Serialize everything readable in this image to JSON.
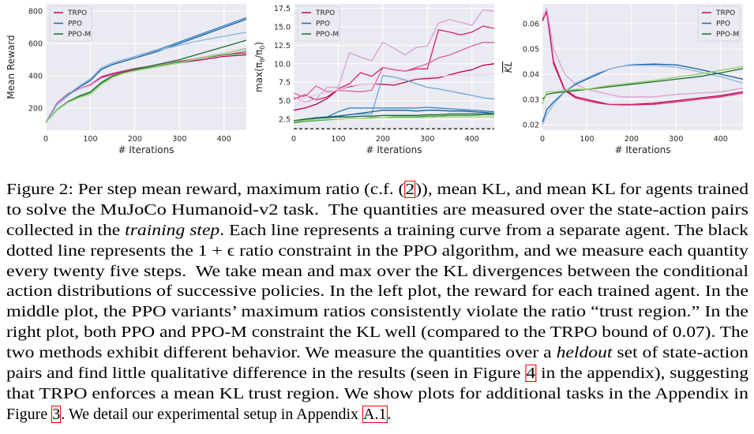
{
  "chart_data": [
    {
      "type": "line",
      "xlabel": "# Iterations",
      "ylabel": "Mean Reward",
      "xlim": [
        0,
        450
      ],
      "ylim": [
        63,
        845
      ],
      "xticks": [
        0,
        100,
        200,
        300,
        400
      ],
      "yticks": [
        200,
        400,
        600,
        800
      ],
      "grid": true,
      "legend": "top-left",
      "x": [
        0,
        25,
        50,
        75,
        100,
        125,
        150,
        175,
        200,
        250,
        300,
        350,
        400,
        450
      ],
      "series": [
        {
          "name": "TRPO",
          "color": "#c8145a",
          "run_colors": [
            "#c2004f",
            "#d6337a",
            "#d9a0d6"
          ],
          "runs": [
            [
              110,
              230,
              290,
              320,
              340,
              390,
              410,
              425,
              440,
              460,
              480,
              500,
              520,
              530
            ],
            [
              110,
              230,
              290,
              320,
              345,
              395,
              415,
              430,
              445,
              465,
              490,
              510,
              530,
              550
            ],
            [
              110,
              225,
              285,
              318,
              340,
              385,
              405,
              420,
              440,
              465,
              485,
              515,
              540,
              570
            ]
          ]
        },
        {
          "name": "PPO",
          "color": "#1f6fb0",
          "run_colors": [
            "#135ea0",
            "#2d7fc0",
            "#8ab4dc"
          ],
          "runs": [
            [
              110,
              220,
              280,
              330,
              370,
              440,
              470,
              490,
              510,
              550,
              600,
              650,
              700,
              750
            ],
            [
              110,
              220,
              285,
              335,
              380,
              450,
              480,
              500,
              520,
              560,
              610,
              660,
              710,
              760
            ],
            [
              110,
              220,
              285,
              335,
              380,
              450,
              480,
              500,
              520,
              555,
              590,
              620,
              645,
              670
            ]
          ]
        },
        {
          "name": "PPO-M",
          "color": "#237a3a",
          "run_colors": [
            "#1b6b2f",
            "#3a9a4a",
            "#a8d878"
          ],
          "runs": [
            [
              110,
              190,
              240,
              275,
              300,
              360,
              400,
              420,
              440,
              470,
              500,
              540,
              580,
              620
            ],
            [
              110,
              190,
              235,
              270,
              295,
              355,
              395,
              418,
              435,
              460,
              485,
              510,
              530,
              540
            ],
            [
              110,
              185,
              235,
              265,
              285,
              345,
              390,
              415,
              430,
              455,
              480,
              510,
              540,
              565
            ]
          ]
        }
      ]
    },
    {
      "type": "line",
      "xlabel": "# Iterations",
      "ylabel": "max(πθ/π0)",
      "xlim": [
        0,
        450
      ],
      "ylim": [
        1.0,
        18.1
      ],
      "xticks": [
        0,
        100,
        200,
        300,
        400
      ],
      "yticks": [
        2.5,
        5.0,
        7.5,
        10.0,
        12.5,
        15.0,
        17.5
      ],
      "grid": true,
      "legend": "top-left",
      "constraint_line": 1.2,
      "x": [
        0,
        25,
        50,
        75,
        100,
        125,
        150,
        175,
        200,
        225,
        250,
        275,
        300,
        325,
        350,
        375,
        400,
        425,
        450
      ],
      "series": [
        {
          "name": "TRPO",
          "color": "#c8145a",
          "run_colors": [
            "#b8004a",
            "#d8206a",
            "#e060a0",
            "#d9a0d6",
            "#ecd0ec"
          ],
          "runs": [
            [
              3.7,
              4.0,
              4.5,
              5.3,
              6.5,
              6.9,
              7.2,
              7.3,
              7.2,
              7.1,
              7.5,
              7.9,
              8.0,
              8.1,
              8.5,
              8.9,
              9.2,
              9.8,
              10.0
            ],
            [
              5.2,
              5.8,
              5.1,
              5.5,
              6.6,
              7.3,
              8.8,
              8.3,
              9.5,
              9.2,
              9.0,
              9.3,
              9.3,
              14.6,
              14.3,
              13.9,
              14.3,
              15.1,
              14.8
            ],
            [
              6.0,
              5.5,
              7.0,
              6.2,
              6.4,
              6.3,
              6.2,
              6.4,
              9.5,
              9.2,
              9.0,
              9.5,
              10.0,
              10.8,
              11.2,
              11.8,
              12.4,
              12.9,
              12.9
            ],
            [
              5.5,
              4.8,
              5.2,
              6.8,
              6.8,
              11.5,
              10.9,
              10.4,
              12.9,
              12.1,
              11.2,
              12.2,
              12.4,
              15.5,
              16.0,
              15.6,
              15.2,
              17.3,
              17.1
            ],
            [
              4.0,
              5.5,
              5.8,
              6.0,
              6.5,
              7.0,
              7.2,
              7.3,
              7.4,
              7.5,
              7.8,
              8.0,
              8.2,
              8.3,
              8.4,
              8.5,
              8.5,
              8.5,
              8.7
            ]
          ]
        },
        {
          "name": "PPO",
          "color": "#1f6fb0",
          "run_colors": [
            "#2d7fc0",
            "#6fa6d6",
            "#135ea0"
          ],
          "runs": [
            [
              2.0,
              2.4,
              2.6,
              2.8,
              3.5,
              4.0,
              4.0,
              4.0,
              4.0,
              4.0,
              4.0,
              4.0,
              4.1,
              4.0,
              3.9,
              3.8,
              3.7,
              3.6,
              3.5
            ],
            [
              2.0,
              2.4,
              2.6,
              2.8,
              2.9,
              3.1,
              3.2,
              3.2,
              8.4,
              8.2,
              7.8,
              7.3,
              6.8,
              6.6,
              6.3,
              6.0,
              5.7,
              5.4,
              5.2
            ],
            [
              2.2,
              2.5,
              2.7,
              2.8,
              2.9,
              3.1,
              3.3,
              3.5,
              3.7,
              3.7,
              3.7,
              3.6,
              3.7,
              3.7,
              3.6,
              3.6,
              3.5,
              3.4,
              3.3
            ]
          ]
        },
        {
          "name": "PPO-M",
          "color": "#237a3a",
          "run_colors": [
            "#1b6b2f",
            "#3a9a4a",
            "#a8d878"
          ],
          "runs": [
            [
              2.3,
              2.5,
              2.6,
              2.7,
              2.8,
              2.8,
              2.9,
              2.9,
              3.0,
              3.0,
              3.0,
              3.0,
              3.1,
              3.1,
              3.2,
              3.2,
              3.2,
              3.2,
              3.3
            ],
            [
              2.0,
              2.2,
              2.3,
              2.4,
              2.5,
              2.6,
              2.6,
              2.7,
              2.7,
              2.8,
              2.8,
              2.8,
              2.9,
              2.9,
              3.0,
              3.0,
              3.0,
              3.1,
              3.1
            ],
            [
              2.2,
              2.3,
              2.4,
              2.5,
              2.5,
              2.6,
              2.6,
              2.6,
              2.7,
              2.7,
              2.7,
              2.7,
              2.7,
              2.8,
              2.8,
              2.8,
              2.8,
              2.8,
              2.8
            ]
          ]
        }
      ]
    },
    {
      "type": "line",
      "xlabel": "# Iterations",
      "ylabel": "KL (mean)",
      "xlim": [
        0,
        450
      ],
      "ylim": [
        0.0178,
        0.0678
      ],
      "xticks": [
        0,
        100,
        200,
        300,
        400
      ],
      "yticks": [
        0.02,
        0.03,
        0.04,
        0.05,
        0.06
      ],
      "grid": true,
      "legend": "top-right",
      "x": [
        0,
        10,
        25,
        50,
        75,
        100,
        125,
        150,
        175,
        200,
        250,
        300,
        350,
        400,
        450
      ],
      "series": [
        {
          "name": "TRPO",
          "color": "#c8145a",
          "run_colors": [
            "#c2004f",
            "#d6337a",
            "#d9a0d6"
          ],
          "runs": [
            [
              0.061,
              0.065,
              0.045,
              0.034,
              0.031,
              0.03,
              0.029,
              0.028,
              0.028,
              0.028,
              0.0285,
              0.0295,
              0.0305,
              0.0315,
              0.033
            ],
            [
              0.062,
              0.064,
              0.044,
              0.0335,
              0.0305,
              0.0295,
              0.0285,
              0.028,
              0.0278,
              0.0278,
              0.028,
              0.029,
              0.03,
              0.031,
              0.0325
            ],
            [
              0.063,
              0.066,
              0.05,
              0.04,
              0.036,
              0.034,
              0.033,
              0.032,
              0.031,
              0.031,
              0.031,
              0.032,
              0.0325,
              0.033,
              0.0345
            ]
          ]
        },
        {
          "name": "PPO",
          "color": "#1f6fb0",
          "run_colors": [
            "#135ea0",
            "#8ab4dc"
          ],
          "runs": [
            [
              0.021,
              0.026,
              0.029,
              0.033,
              0.036,
              0.038,
              0.04,
              0.042,
              0.043,
              0.0437,
              0.044,
              0.0437,
              0.042,
              0.04,
              0.038
            ],
            [
              0.02,
              0.024,
              0.028,
              0.033,
              0.0365,
              0.0385,
              0.0405,
              0.042,
              0.043,
              0.0435,
              0.0435,
              0.0428,
              0.041,
              0.039,
              0.0365
            ]
          ]
        },
        {
          "name": "PPO-M",
          "color": "#237a3a",
          "run_colors": [
            "#1b6b2f",
            "#8fd060"
          ],
          "runs": [
            [
              0.03,
              0.032,
              0.0325,
              0.033,
              0.0335,
              0.034,
              0.0345,
              0.035,
              0.0355,
              0.036,
              0.037,
              0.038,
              0.039,
              0.0405,
              0.0422
            ],
            [
              0.028,
              0.033,
              0.033,
              0.0335,
              0.034,
              0.034,
              0.0348,
              0.0355,
              0.036,
              0.0365,
              0.0375,
              0.0388,
              0.04,
              0.0415,
              0.043
            ]
          ]
        }
      ]
    }
  ],
  "caption": {
    "lines": [
      [
        {
          "text": "Figure 2: Per step mean reward, maximum ratio (c.f. ("
        },
        {
          "text": "2",
          "style": "ref"
        },
        {
          "text": ")), mean KL, and mean KL for agents trained"
        }
      ],
      [
        {
          "text": "to solve the MuJoCo Humanoid-v2 task.  The quantities are measured over the state-action pairs"
        }
      ],
      [
        {
          "text": "collected in the "
        },
        {
          "text": "training step",
          "style": "it"
        },
        {
          "text": ". Each line represents a training curve from a separate agent. The black"
        }
      ],
      [
        {
          "text": "dotted line represents the 1 + ϵ ratio constraint in the PPO algorithm, and we measure each quantity"
        }
      ],
      [
        {
          "text": "every twenty five steps.  We take mean and max over the KL divergences between the conditional"
        }
      ],
      [
        {
          "text": "action distributions of successive policies. In the left plot, the reward for each trained agent. In the"
        }
      ],
      [
        {
          "text": "middle plot, the PPO variants’ maximum ratios consistently violate the ratio “trust region.” In the"
        }
      ],
      [
        {
          "text": "right plot, both PPO and PPO-M constraint the KL well (compared to the TRPO bound of 0.07). The"
        }
      ],
      [
        {
          "text": "two methods exhibit different behavior. We measure the quantities over a "
        },
        {
          "text": "heldout",
          "style": "it"
        },
        {
          "text": " set of state-action"
        }
      ],
      [
        {
          "text": "pairs and find little qualitative difference in the results (seen in Figure "
        },
        {
          "text": "4",
          "style": "ref"
        },
        {
          "text": " in the appendix), suggesting"
        }
      ],
      [
        {
          "text": "that TRPO enforces a mean KL trust region. We show plots for additional tasks in the Appendix in"
        }
      ],
      [
        {
          "text": "Figure "
        },
        {
          "text": "3",
          "style": "ref"
        },
        {
          "text": ". We detail our experimental setup in Appendix "
        },
        {
          "text": "A.1",
          "style": "ref"
        },
        {
          "text": "."
        }
      ]
    ]
  }
}
